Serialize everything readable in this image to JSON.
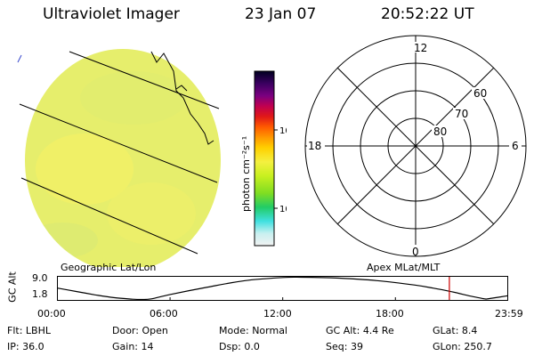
{
  "header": {
    "instrument": "Ultraviolet Imager",
    "date": "23 Jan 07",
    "time": "20:52:22 UT"
  },
  "left_panel": {
    "label": "Geographic Lat/Lon",
    "fill_color": "#e6ee6c"
  },
  "colorbar": {
    "unit_label": "photon cm⁻²s⁻¹",
    "ticks": [
      "100",
      "10"
    ],
    "scale": "log",
    "colors": [
      "#f2f2f2",
      "#c8f0f0",
      "#40e0e0",
      "#22cc66",
      "#7fdd22",
      "#c8f020",
      "#f4f040",
      "#ffd000",
      "#ff9900",
      "#ff5a00",
      "#e01818",
      "#c00050",
      "#7a0080",
      "#3a0060",
      "#000020"
    ]
  },
  "right_panel": {
    "label": "Apex MLat/MLT",
    "mlt_labels": [
      "12",
      "18",
      "6",
      "0"
    ],
    "mlat_labels": [
      "60",
      "70",
      "80"
    ]
  },
  "altitude_plot": {
    "ylabel": "GC Alt",
    "yticks": [
      "9.0",
      "1.8"
    ],
    "xticks": [
      "00:00",
      "06:00",
      "12:00",
      "18:00",
      "23:59"
    ],
    "marker_color": "#cc0000"
  },
  "footer": {
    "flt_label": "Flt:",
    "flt_value": "LBHL",
    "ip_label": "IP:",
    "ip_value": "36.0",
    "door_label": "Door:",
    "door_value": "Open",
    "gain_label": "Gain:",
    "gain_value": "14",
    "mode_label": "Mode:",
    "mode_value": "Normal",
    "dsp_label": "Dsp:",
    "dsp_value": "0.0",
    "gcalt_label": "GC Alt:",
    "gcalt_value": "4.4 Re",
    "seq_label": "Seq:",
    "seq_value": "39",
    "glat_label": "GLat:",
    "glat_value": "8.4",
    "glon_label": "GLon:",
    "glon_value": "250.7"
  },
  "chart_data": {
    "type": "line",
    "title": "",
    "xlabel": "",
    "ylabel": "GC Alt",
    "xlim": [
      "00:00",
      "23:59"
    ],
    "ylim": [
      1.8,
      9.0
    ],
    "current_time": "20:52:22",
    "x": [
      "00:00",
      "01:00",
      "02:00",
      "03:00",
      "04:00",
      "04:30",
      "05:00",
      "06:00",
      "08:00",
      "10:00",
      "12:00",
      "13:00",
      "15:00",
      "17:00",
      "19:00",
      "20:00",
      "21:00",
      "22:00",
      "22:45",
      "23:00",
      "23:59"
    ],
    "values": [
      5.5,
      4.4,
      3.3,
      2.4,
      1.9,
      1.8,
      2.0,
      3.4,
      5.8,
      7.9,
      8.9,
      9.0,
      8.7,
      7.9,
      6.5,
      5.5,
      4.3,
      2.9,
      2.0,
      2.1,
      3.0
    ]
  }
}
